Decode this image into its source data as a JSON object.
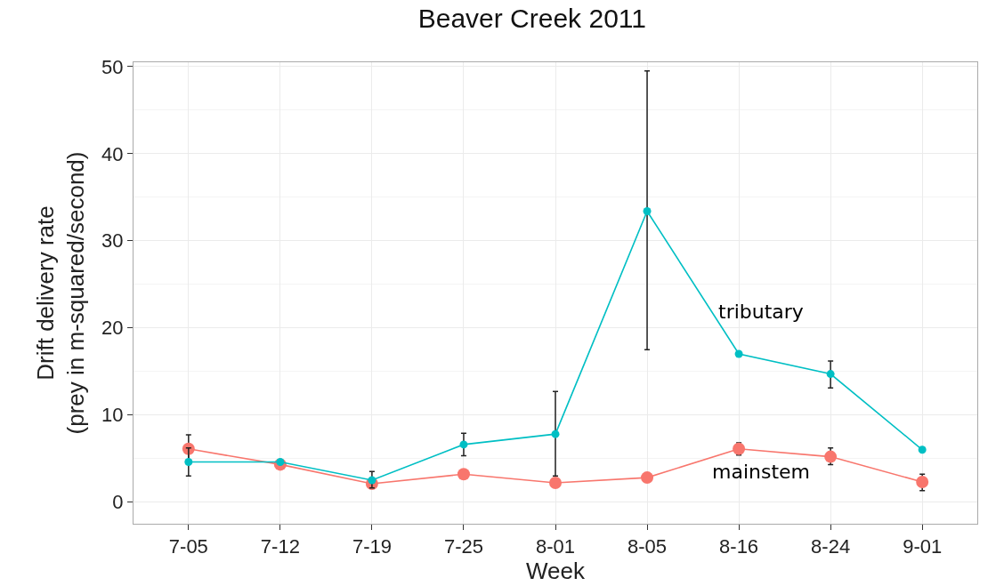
{
  "chart_data": {
    "type": "line",
    "title": "Beaver Creek 2011",
    "xlabel": "Week",
    "ylabel": "Drift delivery rate\n(prey in m-squared/second)",
    "categories": [
      "7-05",
      "7-12",
      "7-19",
      "7-25",
      "8-01",
      "8-05",
      "8-16",
      "8-24",
      "9-01"
    ],
    "series": [
      {
        "name": "mainstem",
        "color": "#f8766d",
        "values": [
          6.1,
          4.3,
          2.1,
          3.2,
          2.2,
          2.8,
          6.1,
          5.2,
          2.3
        ],
        "errors": [
          [
            4.4,
            7.7
          ],
          null,
          null,
          null,
          null,
          null,
          [
            5.4,
            6.8
          ],
          [
            4.3,
            6.2
          ],
          [
            1.3,
            3.2
          ]
        ]
      },
      {
        "name": "tributary",
        "color": "#00bfc4",
        "values": [
          4.6,
          4.6,
          2.5,
          6.6,
          7.8,
          33.4,
          17.0,
          14.7,
          6.0
        ],
        "errors": [
          [
            3.0,
            6.2
          ],
          null,
          [
            1.6,
            3.5
          ],
          [
            5.3,
            7.9
          ],
          [
            3.0,
            12.7
          ],
          [
            17.5,
            49.5
          ],
          null,
          [
            13.1,
            16.2
          ],
          null
        ]
      }
    ],
    "ylim": [
      -2.5,
      50.5
    ],
    "yticks": [
      0,
      10,
      20,
      30,
      40,
      50
    ],
    "grid": true,
    "legend": false,
    "marker": "circle",
    "line_style": "solid"
  }
}
